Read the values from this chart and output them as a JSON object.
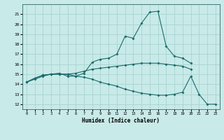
{
  "xlabel": "Humidex (Indice chaleur)",
  "bg_color": "#c8eae8",
  "grid_color": "#a8d4d0",
  "line_color": "#1a6b6b",
  "x": [
    0,
    1,
    2,
    3,
    4,
    5,
    6,
    7,
    8,
    9,
    10,
    11,
    12,
    13,
    14,
    15,
    16,
    17,
    18,
    19,
    20,
    21,
    22,
    23
  ],
  "line1": [
    14.2,
    14.6,
    14.9,
    15.0,
    15.1,
    14.8,
    14.8,
    15.1,
    16.2,
    16.5,
    16.6,
    17.0,
    18.8,
    18.6,
    20.1,
    21.2,
    21.3,
    17.8,
    16.8,
    16.6,
    16.1,
    null,
    null,
    null
  ],
  "line2": [
    14.2,
    14.6,
    14.9,
    15.0,
    15.0,
    15.0,
    15.1,
    15.3,
    15.5,
    15.6,
    15.7,
    15.8,
    15.9,
    16.0,
    16.1,
    16.1,
    16.1,
    16.0,
    15.9,
    15.8,
    15.5,
    null,
    null,
    null
  ],
  "line3": [
    14.2,
    14.5,
    14.8,
    15.0,
    15.0,
    15.0,
    14.8,
    14.7,
    14.5,
    14.2,
    14.0,
    13.8,
    13.5,
    13.3,
    13.1,
    13.0,
    12.9,
    12.9,
    13.0,
    13.2,
    14.8,
    13.0,
    12.0,
    12.0
  ],
  "xlim": [
    -0.5,
    23.5
  ],
  "ylim": [
    11.5,
    22.0
  ],
  "yticks": [
    12,
    13,
    14,
    15,
    16,
    17,
    18,
    19,
    20,
    21
  ],
  "xticks": [
    0,
    1,
    2,
    3,
    4,
    5,
    6,
    7,
    8,
    9,
    10,
    11,
    12,
    13,
    14,
    15,
    16,
    17,
    18,
    19,
    20,
    21,
    22,
    23
  ]
}
